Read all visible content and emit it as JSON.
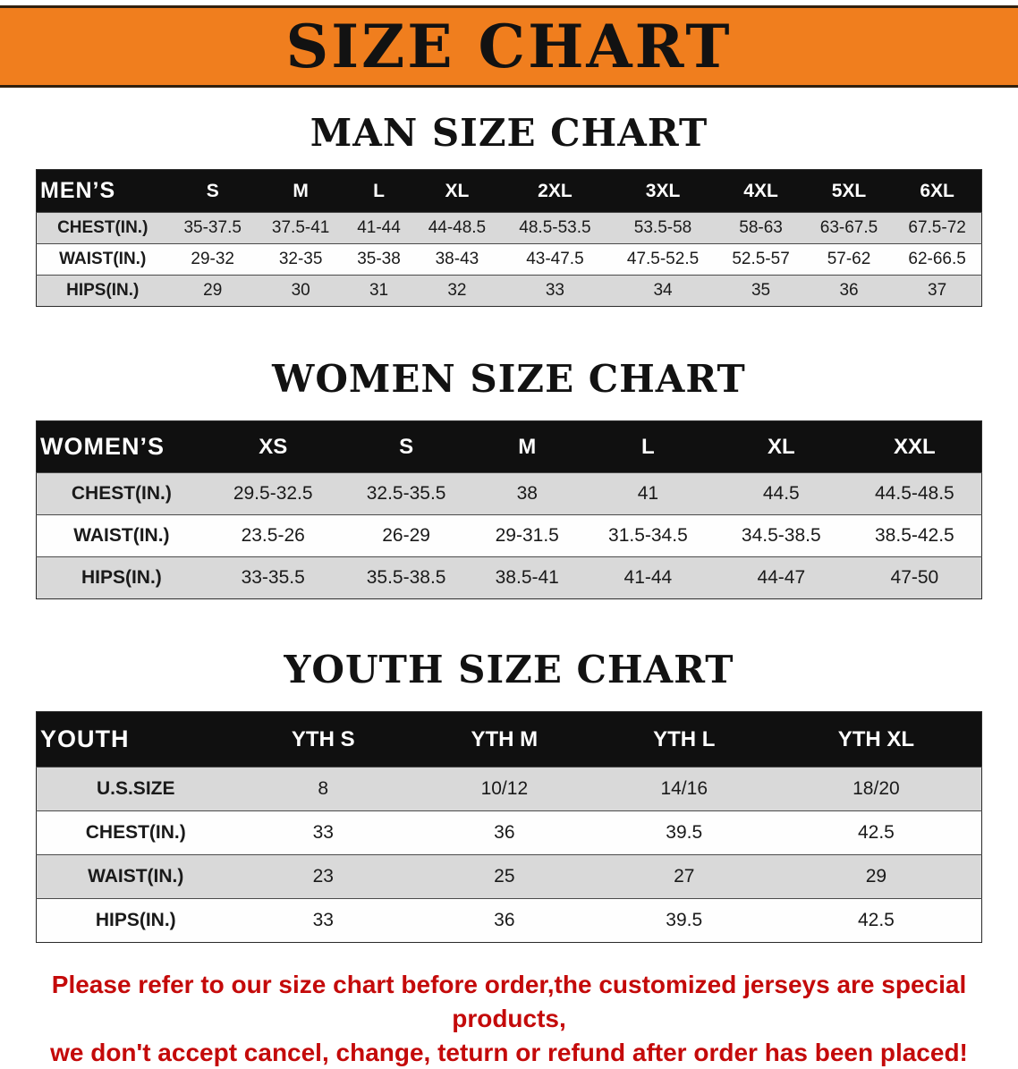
{
  "banner": {
    "title": "SIZE CHART"
  },
  "colors": {
    "banner_orange": "#F07E1E",
    "table_header_black": "#101010",
    "row_stripe_gray": "#D9D9D9",
    "disclaimer_red": "#C40A0A"
  },
  "sections": [
    {
      "heading": "MAN SIZE CHART",
      "table": {
        "label": "MEN’S",
        "columns": [
          "S",
          "M",
          "L",
          "XL",
          "2XL",
          "3XL",
          "4XL",
          "5XL",
          "6XL"
        ],
        "rows": [
          {
            "label": "CHEST(IN.)",
            "values": [
              "35-37.5",
              "37.5-41",
              "41-44",
              "44-48.5",
              "48.5-53.5",
              "53.5-58",
              "58-63",
              "63-67.5",
              "67.5-72"
            ]
          },
          {
            "label": "WAIST(IN.)",
            "values": [
              "29-32",
              "32-35",
              "35-38",
              "38-43",
              "43-47.5",
              "47.5-52.5",
              "52.5-57",
              "57-62",
              "62-66.5"
            ]
          },
          {
            "label": "HIPS(IN.)",
            "values": [
              "29",
              "30",
              "31",
              "32",
              "33",
              "34",
              "35",
              "36",
              "37"
            ]
          }
        ]
      }
    },
    {
      "heading": "WOMEN SIZE CHART",
      "table": {
        "label": "WOMEN’S",
        "columns": [
          "XS",
          "S",
          "M",
          "L",
          "XL",
          "XXL"
        ],
        "rows": [
          {
            "label": "CHEST(IN.)",
            "values": [
              "29.5-32.5",
              "32.5-35.5",
              "38",
              "41",
              "44.5",
              "44.5-48.5"
            ]
          },
          {
            "label": "WAIST(IN.)",
            "values": [
              "23.5-26",
              "26-29",
              "29-31.5",
              "31.5-34.5",
              "34.5-38.5",
              "38.5-42.5"
            ]
          },
          {
            "label": "HIPS(IN.)",
            "values": [
              "33-35.5",
              "35.5-38.5",
              "38.5-41",
              "41-44",
              "44-47",
              "47-50"
            ]
          }
        ]
      }
    },
    {
      "heading": "YOUTH SIZE CHART",
      "table": {
        "label": "YOUTH",
        "columns": [
          "YTH S",
          "YTH M",
          "YTH L",
          "YTH XL"
        ],
        "rows": [
          {
            "label": "U.S.SIZE",
            "values": [
              "8",
              "10/12",
              "14/16",
              "18/20"
            ]
          },
          {
            "label": "CHEST(IN.)",
            "values": [
              "33",
              "36",
              "39.5",
              "42.5"
            ]
          },
          {
            "label": "WAIST(IN.)",
            "values": [
              "23",
              "25",
              "27",
              "29"
            ]
          },
          {
            "label": "HIPS(IN.)",
            "values": [
              "33",
              "36",
              "39.5",
              "42.5"
            ]
          }
        ]
      }
    }
  ],
  "disclaimer": {
    "line1": "Please refer to our size chart before order,the customized jerseys are special products,",
    "line2": "we don't accept cancel, change, teturn or refund after order has been placed!"
  }
}
